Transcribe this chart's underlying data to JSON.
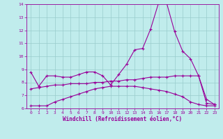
{
  "xlabel": "Windchill (Refroidissement éolien,°C)",
  "bg_color": "#c0ecec",
  "line_color": "#990099",
  "grid_color": "#99cccc",
  "x": [
    0,
    1,
    2,
    3,
    4,
    5,
    6,
    7,
    8,
    9,
    10,
    11,
    12,
    13,
    14,
    15,
    16,
    17,
    18,
    19,
    20,
    21,
    22,
    23
  ],
  "line1": [
    8.8,
    7.7,
    8.5,
    8.5,
    8.4,
    8.4,
    8.6,
    8.8,
    8.8,
    8.5,
    7.8,
    8.6,
    9.4,
    10.5,
    10.6,
    12.1,
    14.1,
    14.1,
    11.9,
    10.4,
    9.8,
    8.5,
    6.7,
    6.3
  ],
  "line2": [
    6.2,
    6.2,
    6.2,
    6.5,
    6.7,
    6.9,
    7.1,
    7.3,
    7.5,
    7.6,
    7.7,
    7.7,
    7.7,
    7.7,
    7.6,
    7.5,
    7.4,
    7.3,
    7.1,
    6.9,
    6.5,
    6.3,
    6.2,
    6.2
  ],
  "line3": [
    7.5,
    7.6,
    7.7,
    7.8,
    7.8,
    7.9,
    7.9,
    7.9,
    8.0,
    8.0,
    8.1,
    8.1,
    8.2,
    8.2,
    8.3,
    8.4,
    8.4,
    8.4,
    8.5,
    8.5,
    8.5,
    8.5,
    6.4,
    6.3
  ],
  "ylim": [
    6,
    14
  ],
  "xlim": [
    0,
    23
  ],
  "yticks": [
    6,
    7,
    8,
    9,
    10,
    11,
    12,
    13,
    14
  ],
  "xticks": [
    0,
    1,
    2,
    3,
    4,
    5,
    6,
    7,
    8,
    9,
    10,
    11,
    12,
    13,
    14,
    15,
    16,
    17,
    18,
    19,
    20,
    21,
    22,
    23
  ]
}
